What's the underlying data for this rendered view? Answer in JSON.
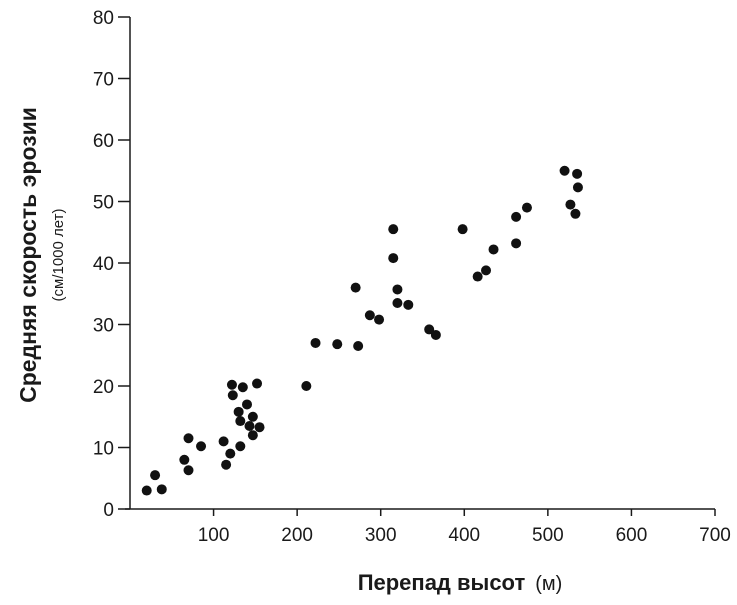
{
  "chart_data": {
    "type": "scatter",
    "xlabel": "Перепад высот",
    "xlabel_unit": "(м)",
    "ylabel": "Средняя скорость эрозии",
    "ylabel_unit": "(см/1000 лет)",
    "xlim": [
      0,
      700
    ],
    "ylim": [
      0,
      80
    ],
    "x_ticks": [
      100,
      200,
      300,
      400,
      500,
      600,
      700
    ],
    "y_ticks": [
      0,
      10,
      20,
      30,
      40,
      50,
      60,
      70,
      80
    ],
    "grid": false,
    "points": [
      {
        "x": 20,
        "y": 3
      },
      {
        "x": 30,
        "y": 5.5
      },
      {
        "x": 38,
        "y": 3.2
      },
      {
        "x": 65,
        "y": 8
      },
      {
        "x": 70,
        "y": 11.5
      },
      {
        "x": 70,
        "y": 6.3
      },
      {
        "x": 85,
        "y": 10.2
      },
      {
        "x": 112,
        "y": 11
      },
      {
        "x": 115,
        "y": 7.2
      },
      {
        "x": 120,
        "y": 9
      },
      {
        "x": 122,
        "y": 20.2
      },
      {
        "x": 123,
        "y": 18.5
      },
      {
        "x": 130,
        "y": 15.8
      },
      {
        "x": 132,
        "y": 14.3
      },
      {
        "x": 132,
        "y": 10.2
      },
      {
        "x": 135,
        "y": 19.8
      },
      {
        "x": 140,
        "y": 17
      },
      {
        "x": 143,
        "y": 13.5
      },
      {
        "x": 147,
        "y": 12
      },
      {
        "x": 147,
        "y": 15
      },
      {
        "x": 152,
        "y": 20.4
      },
      {
        "x": 155,
        "y": 13.3
      },
      {
        "x": 211,
        "y": 20
      },
      {
        "x": 222,
        "y": 27
      },
      {
        "x": 248,
        "y": 26.8
      },
      {
        "x": 270,
        "y": 36
      },
      {
        "x": 273,
        "y": 26.5
      },
      {
        "x": 287,
        "y": 31.5
      },
      {
        "x": 298,
        "y": 30.8
      },
      {
        "x": 315,
        "y": 45.5
      },
      {
        "x": 315,
        "y": 40.8
      },
      {
        "x": 320,
        "y": 35.7
      },
      {
        "x": 320,
        "y": 33.5
      },
      {
        "x": 333,
        "y": 33.2
      },
      {
        "x": 358,
        "y": 29.2
      },
      {
        "x": 366,
        "y": 28.3
      },
      {
        "x": 398,
        "y": 45.5
      },
      {
        "x": 416,
        "y": 37.8
      },
      {
        "x": 426,
        "y": 38.8
      },
      {
        "x": 435,
        "y": 42.2
      },
      {
        "x": 462,
        "y": 43.2
      },
      {
        "x": 462,
        "y": 47.5
      },
      {
        "x": 475,
        "y": 49
      },
      {
        "x": 520,
        "y": 55
      },
      {
        "x": 527,
        "y": 49.5
      },
      {
        "x": 533,
        "y": 48
      },
      {
        "x": 535,
        "y": 54.5
      },
      {
        "x": 536,
        "y": 52.3
      }
    ]
  }
}
